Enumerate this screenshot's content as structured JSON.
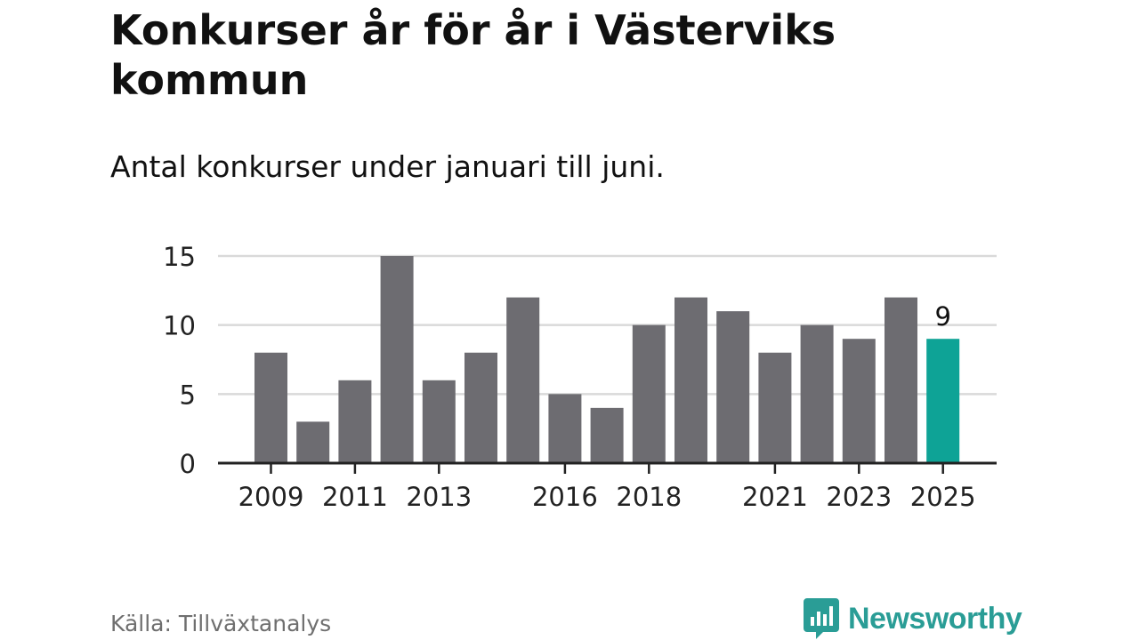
{
  "title": "Konkurser år för år i Västerviks kommun",
  "subtitle": "Antal konkurser under januari till juni.",
  "source": "Källa: Tillväxtanalys",
  "logo_text": "Newsworthy",
  "colors": {
    "bar": "#6d6c71",
    "highlight": "#0ea396",
    "grid": "#d9d9d9",
    "axis": "#222222",
    "brand": "#2a9d96"
  },
  "chart_data": {
    "type": "bar",
    "x": [
      2009,
      2010,
      2011,
      2012,
      2013,
      2014,
      2015,
      2016,
      2017,
      2018,
      2019,
      2020,
      2021,
      2022,
      2023,
      2024,
      2025
    ],
    "values": [
      8,
      3,
      6,
      15,
      6,
      8,
      12,
      5,
      4,
      10,
      12,
      11,
      8,
      10,
      9,
      12,
      9
    ],
    "x_tick_labels": [
      "2009",
      "2011",
      "2013",
      "2016",
      "2018",
      "2021",
      "2023",
      "2025"
    ],
    "y_ticks": [
      0,
      5,
      10,
      15
    ],
    "ylim": [
      0,
      15
    ],
    "highlight_index": 16,
    "data_labels": [
      {
        "index": 16,
        "text": "9"
      }
    ],
    "grid": true,
    "xlabel": "",
    "ylabel": ""
  }
}
